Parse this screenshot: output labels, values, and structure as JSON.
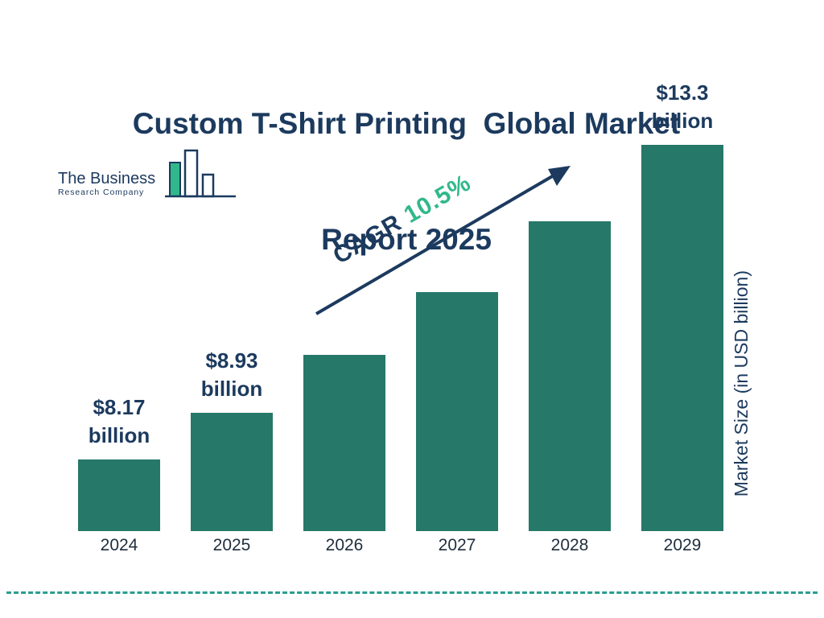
{
  "title": {
    "line1": "Custom T-Shirt Printing  Global Market",
    "line2": "Report 2025"
  },
  "logo": {
    "name_line1": "The Business",
    "name_line2": "Research Company"
  },
  "cagr": {
    "label": "CAGR",
    "value": "10.5%"
  },
  "y_axis_label": "Market Size (in USD billion)",
  "chart_data": {
    "type": "bar",
    "title": "Custom T-Shirt Printing Global Market Report 2025",
    "categories": [
      "2024",
      "2025",
      "2026",
      "2027",
      "2028",
      "2029"
    ],
    "values": [
      8.17,
      8.93,
      9.87,
      10.9,
      12.05,
      13.3
    ],
    "value_labels": [
      {
        "index": 0,
        "line1": "$8.17",
        "line2": "billion"
      },
      {
        "index": 1,
        "line1": "$8.93",
        "line2": "billion"
      },
      {
        "index": 5,
        "line1": "$13.3",
        "line2": "billion"
      }
    ],
    "cagr_percent": "10.5%",
    "xlabel": "",
    "ylabel": "Market Size (in USD billion)",
    "axis_min": 7.0,
    "axis_max": 13.3,
    "grid": false,
    "legend": "none"
  },
  "colors": {
    "bar": "#267869",
    "navy": "#1c3a5e",
    "green": "#31b88a",
    "dash": "#2a9d8f",
    "bg": "#ffffff"
  }
}
